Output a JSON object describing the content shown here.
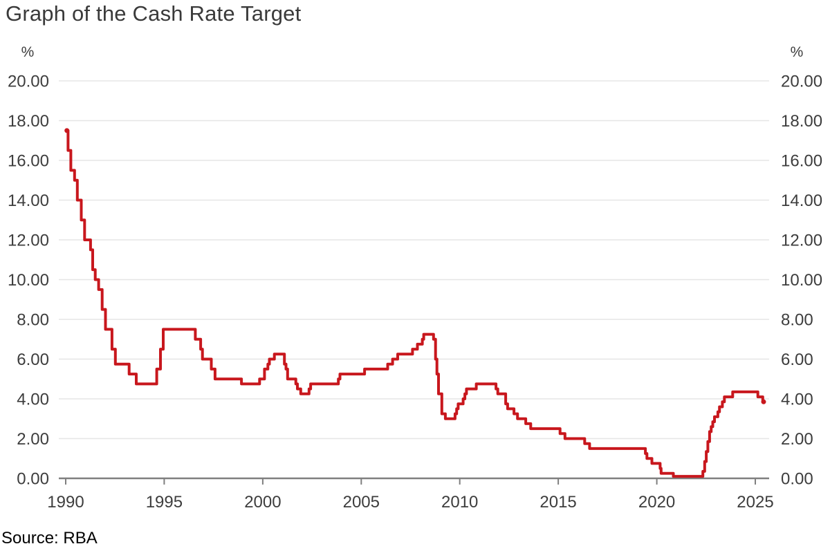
{
  "title": "Graph of the Cash Rate Target",
  "source": "Source: RBA",
  "chart_data": {
    "type": "line",
    "title": "Graph of the Cash Rate Target",
    "series_name": "Cash Rate Target",
    "unit_label": "%",
    "xlabel": "",
    "ylabel": "%",
    "step": true,
    "grid": true,
    "legend": "none",
    "xlim": [
      1989.65,
      2025.7
    ],
    "ylim": [
      0,
      20
    ],
    "x_tick_years": [
      1990,
      1995,
      2000,
      2005,
      2010,
      2015,
      2020,
      2025
    ],
    "x_tick_labels": [
      "1990",
      "1995",
      "2000",
      "2005",
      "2010",
      "2015",
      "2020",
      "2025"
    ],
    "y_tick_values": [
      0,
      2,
      4,
      6,
      8,
      10,
      12,
      14,
      16,
      18,
      20
    ],
    "y_tick_labels": [
      "0.00",
      "2.00",
      "4.00",
      "6.00",
      "8.00",
      "10.00",
      "12.00",
      "14.00",
      "16.00",
      "18.00",
      "20.00"
    ],
    "colors": {
      "line": "#c8171d",
      "grid": "#e6e6e6",
      "axis": "#7f7f7f",
      "tick_text": "#3d3d3d",
      "title_text": "#3a3a3a",
      "source_text": "#000000"
    },
    "points": [
      [
        1990.06,
        17.5
      ],
      [
        1990.12,
        16.5
      ],
      [
        1990.26,
        15.5
      ],
      [
        1990.45,
        15.0
      ],
      [
        1990.59,
        14.0
      ],
      [
        1990.79,
        13.0
      ],
      [
        1990.96,
        12.0
      ],
      [
        1991.26,
        11.5
      ],
      [
        1991.37,
        10.5
      ],
      [
        1991.5,
        10.0
      ],
      [
        1991.67,
        9.5
      ],
      [
        1991.85,
        8.5
      ],
      [
        1992.02,
        7.5
      ],
      [
        1992.35,
        6.5
      ],
      [
        1992.52,
        5.75
      ],
      [
        1993.22,
        5.25
      ],
      [
        1993.58,
        4.75
      ],
      [
        1994.62,
        5.5
      ],
      [
        1994.81,
        6.5
      ],
      [
        1994.95,
        7.5
      ],
      [
        1996.58,
        7.0
      ],
      [
        1996.85,
        6.5
      ],
      [
        1996.94,
        6.0
      ],
      [
        1997.39,
        5.5
      ],
      [
        1997.58,
        5.0
      ],
      [
        1998.92,
        4.75
      ],
      [
        1999.84,
        5.0
      ],
      [
        2000.09,
        5.5
      ],
      [
        2000.26,
        5.75
      ],
      [
        2000.34,
        6.0
      ],
      [
        2000.59,
        6.25
      ],
      [
        2001.1,
        5.75
      ],
      [
        2001.18,
        5.5
      ],
      [
        2001.26,
        5.0
      ],
      [
        2001.68,
        4.75
      ],
      [
        2001.76,
        4.5
      ],
      [
        2001.93,
        4.25
      ],
      [
        2002.35,
        4.5
      ],
      [
        2002.43,
        4.75
      ],
      [
        2003.84,
        5.0
      ],
      [
        2003.92,
        5.25
      ],
      [
        2005.17,
        5.5
      ],
      [
        2006.34,
        5.75
      ],
      [
        2006.59,
        6.0
      ],
      [
        2006.85,
        6.25
      ],
      [
        2007.6,
        6.5
      ],
      [
        2007.85,
        6.75
      ],
      [
        2008.1,
        7.0
      ],
      [
        2008.17,
        7.25
      ],
      [
        2008.67,
        7.0
      ],
      [
        2008.77,
        6.0
      ],
      [
        2008.84,
        5.25
      ],
      [
        2008.92,
        4.25
      ],
      [
        2009.09,
        3.25
      ],
      [
        2009.27,
        3.0
      ],
      [
        2009.76,
        3.25
      ],
      [
        2009.84,
        3.5
      ],
      [
        2009.92,
        3.75
      ],
      [
        2010.17,
        4.0
      ],
      [
        2010.26,
        4.25
      ],
      [
        2010.34,
        4.5
      ],
      [
        2010.84,
        4.75
      ],
      [
        2011.84,
        4.5
      ],
      [
        2011.93,
        4.25
      ],
      [
        2012.33,
        3.75
      ],
      [
        2012.43,
        3.5
      ],
      [
        2012.75,
        3.25
      ],
      [
        2012.93,
        3.0
      ],
      [
        2013.35,
        2.75
      ],
      [
        2013.6,
        2.5
      ],
      [
        2015.09,
        2.25
      ],
      [
        2015.34,
        2.0
      ],
      [
        2016.34,
        1.75
      ],
      [
        2016.59,
        1.5
      ],
      [
        2019.42,
        1.25
      ],
      [
        2019.5,
        1.0
      ],
      [
        2019.75,
        0.75
      ],
      [
        2020.17,
        0.5
      ],
      [
        2020.22,
        0.25
      ],
      [
        2020.84,
        0.1
      ],
      [
        2022.34,
        0.35
      ],
      [
        2022.43,
        0.85
      ],
      [
        2022.51,
        1.35
      ],
      [
        2022.59,
        1.85
      ],
      [
        2022.68,
        2.35
      ],
      [
        2022.76,
        2.6
      ],
      [
        2022.84,
        2.85
      ],
      [
        2022.93,
        3.1
      ],
      [
        2023.1,
        3.35
      ],
      [
        2023.18,
        3.6
      ],
      [
        2023.33,
        3.85
      ],
      [
        2023.43,
        4.1
      ],
      [
        2023.85,
        4.35
      ],
      [
        2025.13,
        4.1
      ],
      [
        2025.38,
        3.85
      ],
      [
        2025.42,
        3.85
      ]
    ]
  }
}
